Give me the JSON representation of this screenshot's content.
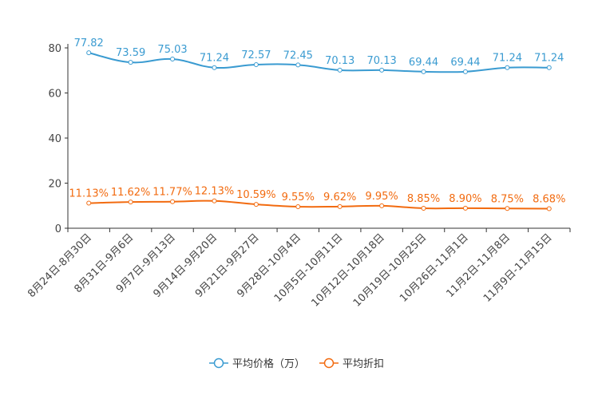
{
  "chart_data": {
    "type": "line",
    "categories": [
      "8月24日-8月30日",
      "8月31日-9月6日",
      "9月7日-9月13日",
      "9月14日-9月20日",
      "9月21日-9月27日",
      "9月28日-10月4日",
      "10月5日-10月11日",
      "10月12日-10月18日",
      "10月19日-10月25日",
      "10月26日-11月1日",
      "11月2日-11月8日",
      "11月9日-11月15日"
    ],
    "series": [
      {
        "name": "平均价格（万）",
        "color": "#3a9bd1",
        "values": [
          77.82,
          73.59,
          75.03,
          71.24,
          72.57,
          72.45,
          70.13,
          70.13,
          69.44,
          69.44,
          71.24,
          71.24
        ],
        "labels": [
          "77.82",
          "73.59",
          "75.03",
          "71.24",
          "72.57",
          "72.45",
          "70.13",
          "70.13",
          "69.44",
          "69.44",
          "71.24",
          "71.24"
        ]
      },
      {
        "name": "平均折扣",
        "color": "#f26b10",
        "values": [
          11.13,
          11.62,
          11.77,
          12.13,
          10.59,
          9.55,
          9.62,
          9.95,
          8.85,
          8.9,
          8.75,
          8.68
        ],
        "labels": [
          "11.13%",
          "11.62%",
          "11.77%",
          "12.13%",
          "10.59%",
          "9.55%",
          "9.62%",
          "9.95%",
          "8.85%",
          "8.90%",
          "8.75%",
          "8.68%"
        ]
      }
    ],
    "yticks": [
      "0",
      "20",
      "40",
      "60",
      "80"
    ],
    "ylim": [
      0,
      80
    ],
    "xlabel": "",
    "ylabel": "",
    "grid": false,
    "legend": "bottom-center"
  }
}
